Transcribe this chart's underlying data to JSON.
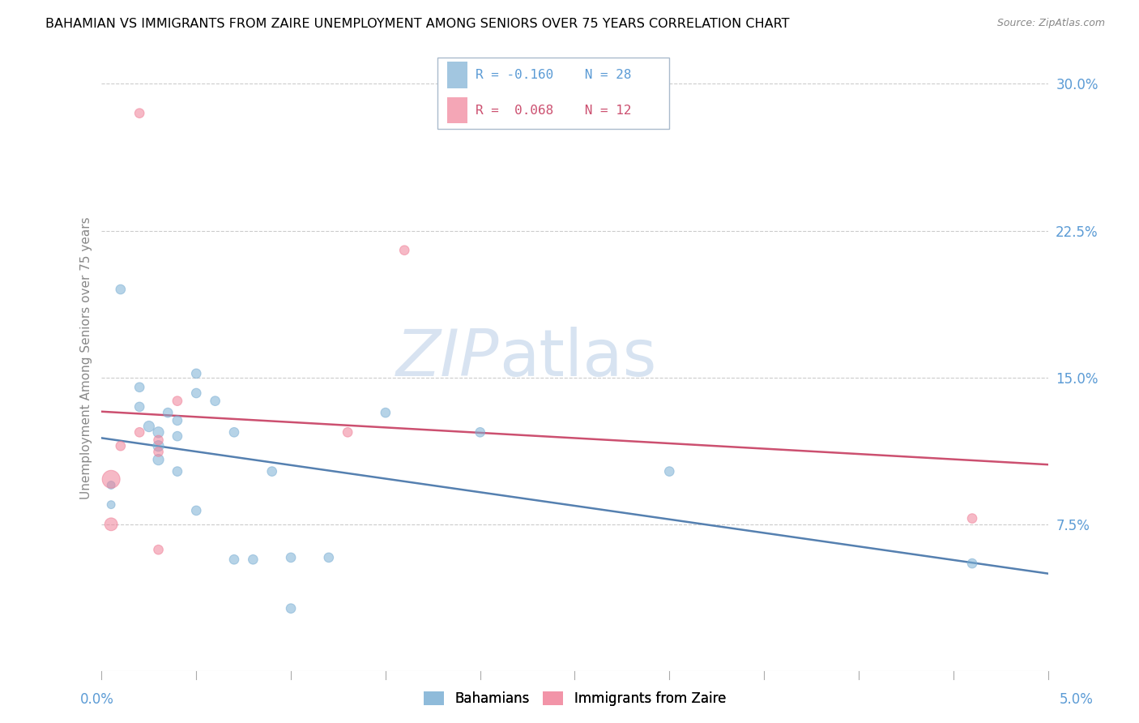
{
  "title": "BAHAMIAN VS IMMIGRANTS FROM ZAIRE UNEMPLOYMENT AMONG SENIORS OVER 75 YEARS CORRELATION CHART",
  "source": "Source: ZipAtlas.com",
  "ylabel": "Unemployment Among Seniors over 75 years",
  "ytick_labels": [
    "7.5%",
    "15.0%",
    "22.5%",
    "30.0%"
  ],
  "ytick_values": [
    0.075,
    0.15,
    0.225,
    0.3
  ],
  "xlim": [
    0.0,
    0.05
  ],
  "ylim": [
    0.0,
    0.32
  ],
  "bahamian_color": "#7bafd4",
  "zaire_color": "#f08098",
  "trendline_bahamian_color": "#5580b0",
  "trendline_zaire_color": "#cc5070",
  "watermark_zip": "ZIP",
  "watermark_atlas": "atlas",
  "bahamian_points": [
    [
      0.0005,
      0.095
    ],
    [
      0.0005,
      0.085
    ],
    [
      0.001,
      0.195
    ],
    [
      0.002,
      0.145
    ],
    [
      0.002,
      0.135
    ],
    [
      0.0025,
      0.125
    ],
    [
      0.003,
      0.122
    ],
    [
      0.003,
      0.115
    ],
    [
      0.003,
      0.108
    ],
    [
      0.0035,
      0.132
    ],
    [
      0.004,
      0.128
    ],
    [
      0.004,
      0.12
    ],
    [
      0.004,
      0.102
    ],
    [
      0.005,
      0.152
    ],
    [
      0.005,
      0.142
    ],
    [
      0.005,
      0.082
    ],
    [
      0.006,
      0.138
    ],
    [
      0.007,
      0.122
    ],
    [
      0.007,
      0.057
    ],
    [
      0.008,
      0.057
    ],
    [
      0.009,
      0.102
    ],
    [
      0.01,
      0.058
    ],
    [
      0.01,
      0.032
    ],
    [
      0.012,
      0.058
    ],
    [
      0.015,
      0.132
    ],
    [
      0.02,
      0.122
    ],
    [
      0.03,
      0.102
    ],
    [
      0.046,
      0.055
    ]
  ],
  "zaire_points": [
    [
      0.002,
      0.285
    ],
    [
      0.0005,
      0.098
    ],
    [
      0.0005,
      0.075
    ],
    [
      0.002,
      0.122
    ],
    [
      0.003,
      0.118
    ],
    [
      0.003,
      0.112
    ],
    [
      0.003,
      0.062
    ],
    [
      0.004,
      0.138
    ],
    [
      0.016,
      0.215
    ],
    [
      0.013,
      0.122
    ],
    [
      0.046,
      0.078
    ],
    [
      0.001,
      0.115
    ]
  ],
  "bahamian_sizes": [
    50,
    50,
    70,
    70,
    70,
    90,
    90,
    90,
    90,
    70,
    70,
    70,
    70,
    70,
    70,
    70,
    70,
    70,
    70,
    70,
    70,
    70,
    70,
    70,
    70,
    70,
    70,
    70
  ],
  "zaire_sizes": [
    70,
    250,
    130,
    70,
    70,
    70,
    70,
    70,
    70,
    70,
    70,
    70
  ]
}
